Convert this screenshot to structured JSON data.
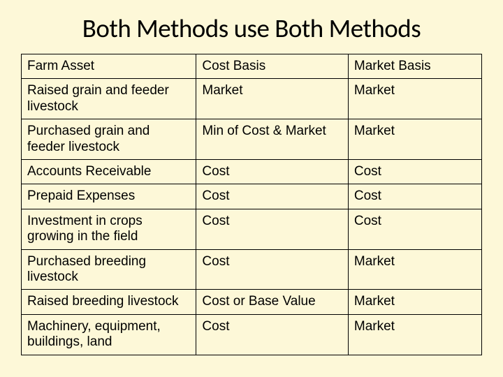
{
  "slide": {
    "title": "Both Methods use Both Methods",
    "background_color": "#fdf8d8",
    "title_fontsize": 37,
    "cell_fontsize": 19,
    "border_color": "#000000"
  },
  "table": {
    "type": "table",
    "columns": [
      {
        "label": "Farm Asset",
        "width_pct": 38
      },
      {
        "label": "Cost Basis",
        "width_pct": 33
      },
      {
        "label": "Market Basis",
        "width_pct": 29
      }
    ],
    "rows": [
      [
        "Raised grain and feeder livestock",
        "Market",
        "Market"
      ],
      [
        "Purchased grain and feeder livestock",
        "Min of Cost & Market",
        "Market"
      ],
      [
        "Accounts Receivable",
        "Cost",
        "Cost"
      ],
      [
        "Prepaid Expenses",
        "Cost",
        "Cost"
      ],
      [
        "Investment in crops growing in the field",
        "Cost",
        "Cost"
      ],
      [
        "Purchased breeding livestock",
        "Cost",
        "Market"
      ],
      [
        "Raised breeding livestock",
        "Cost or Base Value",
        "Market"
      ],
      [
        "Machinery, equipment, buildings, land",
        "Cost",
        "Market"
      ]
    ]
  }
}
